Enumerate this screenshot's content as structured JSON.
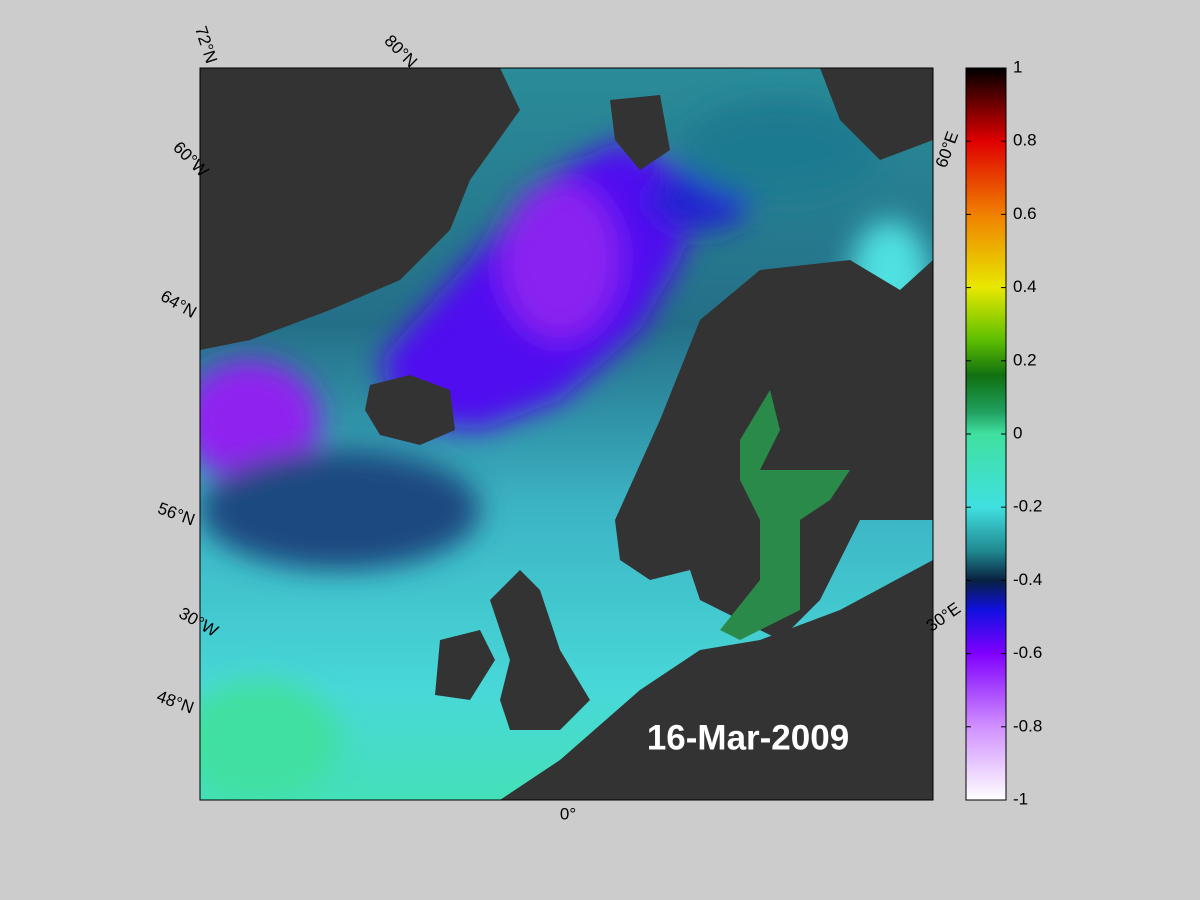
{
  "map": {
    "date": "16-Mar-2009",
    "graticule_labels": [
      "72°N",
      "80°N",
      "60°W",
      "64°N",
      "56°N",
      "30°W",
      "48°N",
      "0°",
      "60°E",
      "30°E"
    ]
  },
  "colorbar": {
    "lim": [
      -1,
      1
    ],
    "ticks": [
      1,
      0.8,
      0.6,
      0.4,
      0.2,
      0,
      -0.2,
      -0.4,
      -0.6,
      -0.8,
      -1
    ]
  }
}
